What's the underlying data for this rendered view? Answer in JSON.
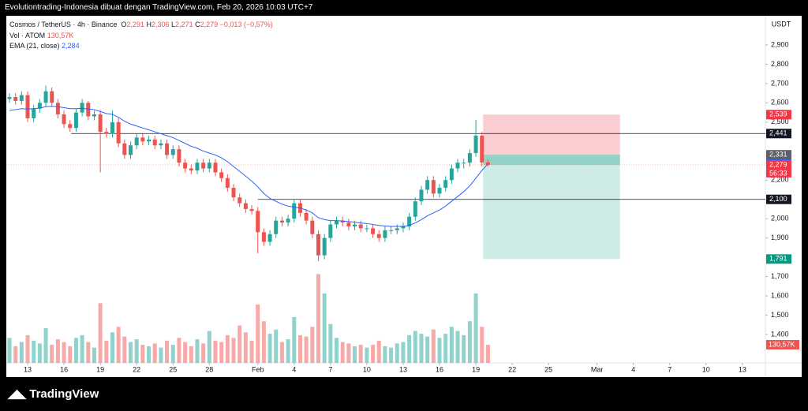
{
  "chart_data": {
    "type": "candlestick",
    "header": "Evolutiontrading-Indonesia dibuat dengan TradingView.com, Feb 20, 2026 10:03 UTC+7",
    "symbol": "Cosmos / TetherUS · 4h · Binance",
    "ohlc": [
      {
        "label": "O",
        "value": "2,291"
      },
      {
        "label": "H",
        "value": "2,306"
      },
      {
        "label": "L",
        "value": "2,271"
      },
      {
        "label": "C",
        "value": "2,279"
      }
    ],
    "change": "−0,013 (−0,57%)",
    "volume_legend": {
      "label": "Vol · ATOM",
      "value": "130,57K"
    },
    "ema_legend": {
      "label": "EMA (21, close)",
      "value": "2,284"
    },
    "currency": "USDT",
    "brand": "TradingView",
    "up_color": "#26a69a",
    "down_color": "#ef5350",
    "ema_color": "#2962ff",
    "x": [
      -1.5,
      -1,
      -0.5,
      0,
      0.5,
      1,
      1.5,
      2,
      2.5,
      3,
      3.5,
      4,
      4.5,
      5,
      5.5,
      6,
      6.5,
      7,
      7.5,
      8,
      8.5,
      9,
      9.5,
      10,
      10.5,
      11,
      11.5,
      12,
      12.5,
      13,
      13.5,
      14,
      14.5,
      15,
      15.5,
      16,
      16.5,
      17,
      17.5,
      18,
      18.5,
      19,
      19.5,
      20,
      20.5,
      21,
      21.5,
      22,
      22.5,
      23,
      23.5,
      24,
      24.5,
      25,
      25.5,
      26,
      26.5,
      27,
      27.5,
      28,
      28.5,
      29,
      29.5,
      30,
      30.5,
      31,
      31.5,
      32,
      32.5,
      33,
      33.5,
      34,
      34.5,
      35,
      35.5,
      36,
      36.5,
      37,
      37.5,
      38
    ],
    "candles": [
      [
        2.62,
        2.65,
        2.6,
        2.63
      ],
      [
        2.63,
        2.65,
        2.59,
        2.61
      ],
      [
        2.61,
        2.66,
        2.59,
        2.64
      ],
      [
        2.64,
        2.66,
        2.5,
        2.52
      ],
      [
        2.52,
        2.59,
        2.5,
        2.57
      ],
      [
        2.57,
        2.62,
        2.55,
        2.6
      ],
      [
        2.6,
        2.69,
        2.58,
        2.66
      ],
      [
        2.66,
        2.68,
        2.58,
        2.6
      ],
      [
        2.6,
        2.62,
        2.52,
        2.54
      ],
      [
        2.54,
        2.56,
        2.47,
        2.49
      ],
      [
        2.49,
        2.51,
        2.45,
        2.47
      ],
      [
        2.47,
        2.57,
        2.45,
        2.55
      ],
      [
        2.55,
        2.62,
        2.53,
        2.6
      ],
      [
        2.6,
        2.61,
        2.51,
        2.53
      ],
      [
        2.53,
        2.56,
        2.51,
        2.54
      ],
      [
        2.54,
        2.56,
        2.24,
        2.45
      ],
      [
        2.45,
        2.47,
        2.42,
        2.44
      ],
      [
        2.44,
        2.56,
        2.42,
        2.5
      ],
      [
        2.5,
        2.52,
        2.37,
        2.39
      ],
      [
        2.39,
        2.41,
        2.31,
        2.33
      ],
      [
        2.33,
        2.4,
        2.31,
        2.38
      ],
      [
        2.38,
        2.44,
        2.36,
        2.42
      ],
      [
        2.42,
        2.44,
        2.38,
        2.4
      ],
      [
        2.4,
        2.43,
        2.38,
        2.41
      ],
      [
        2.41,
        2.43,
        2.36,
        2.38
      ],
      [
        2.38,
        2.41,
        2.36,
        2.39
      ],
      [
        2.39,
        2.41,
        2.31,
        2.33
      ],
      [
        2.33,
        2.38,
        2.31,
        2.36
      ],
      [
        2.36,
        2.38,
        2.27,
        2.29
      ],
      [
        2.29,
        2.31,
        2.24,
        2.26
      ],
      [
        2.26,
        2.28,
        2.23,
        2.25
      ],
      [
        2.25,
        2.31,
        2.23,
        2.29
      ],
      [
        2.29,
        2.31,
        2.24,
        2.26
      ],
      [
        2.26,
        2.31,
        2.24,
        2.29
      ],
      [
        2.29,
        2.31,
        2.22,
        2.24
      ],
      [
        2.24,
        2.26,
        2.19,
        2.21
      ],
      [
        2.21,
        2.23,
        2.14,
        2.16
      ],
      [
        2.16,
        2.18,
        2.09,
        2.11
      ],
      [
        2.11,
        2.13,
        2.06,
        2.08
      ],
      [
        2.08,
        2.1,
        2.03,
        2.05
      ],
      [
        2.05,
        2.07,
        2.02,
        2.04
      ],
      [
        2.04,
        2.06,
        1.82,
        1.93
      ],
      [
        1.93,
        1.95,
        1.86,
        1.88
      ],
      [
        1.88,
        1.94,
        1.86,
        1.92
      ],
      [
        1.92,
        2.01,
        1.9,
        1.99
      ],
      [
        1.99,
        2.01,
        1.96,
        1.98
      ],
      [
        1.98,
        2.02,
        1.96,
        2.0
      ],
      [
        2.0,
        2.1,
        1.98,
        2.08
      ],
      [
        2.08,
        2.1,
        2.01,
        2.03
      ],
      [
        2.03,
        2.05,
        1.97,
        1.99
      ],
      [
        1.99,
        2.01,
        1.9,
        1.92
      ],
      [
        1.92,
        1.94,
        1.78,
        1.81
      ],
      [
        1.81,
        1.92,
        1.79,
        1.9
      ],
      [
        1.9,
        1.99,
        1.88,
        1.97
      ],
      [
        1.97,
        2.01,
        1.95,
        1.99
      ],
      [
        1.99,
        2.01,
        1.96,
        1.98
      ],
      [
        1.98,
        2.0,
        1.94,
        1.96
      ],
      [
        1.96,
        1.99,
        1.94,
        1.97
      ],
      [
        1.97,
        1.99,
        1.93,
        1.95
      ],
      [
        1.95,
        1.97,
        1.93,
        1.95
      ],
      [
        1.95,
        1.97,
        1.9,
        1.92
      ],
      [
        1.92,
        1.94,
        1.88,
        1.9
      ],
      [
        1.9,
        1.96,
        1.88,
        1.94
      ],
      [
        1.94,
        1.96,
        1.92,
        1.94
      ],
      [
        1.94,
        1.97,
        1.92,
        1.95
      ],
      [
        1.95,
        1.98,
        1.93,
        1.96
      ],
      [
        1.96,
        2.03,
        1.94,
        2.01
      ],
      [
        2.01,
        2.11,
        1.99,
        2.09
      ],
      [
        2.09,
        2.17,
        2.07,
        2.15
      ],
      [
        2.15,
        2.22,
        2.13,
        2.2
      ],
      [
        2.2,
        2.22,
        2.11,
        2.13
      ],
      [
        2.13,
        2.18,
        2.11,
        2.16
      ],
      [
        2.16,
        2.22,
        2.14,
        2.2
      ],
      [
        2.2,
        2.28,
        2.18,
        2.26
      ],
      [
        2.26,
        2.31,
        2.24,
        2.29
      ],
      [
        2.29,
        2.31,
        2.26,
        2.29
      ],
      [
        2.29,
        2.36,
        2.27,
        2.34
      ],
      [
        2.34,
        2.512,
        2.32,
        2.43
      ],
      [
        2.43,
        2.45,
        2.27,
        2.291
      ],
      [
        2.291,
        2.306,
        2.271,
        2.279
      ]
    ],
    "volumes": [
      180,
      120,
      150,
      200,
      160,
      140,
      250,
      130,
      170,
      150,
      120,
      180,
      200,
      150,
      110,
      430,
      160,
      220,
      260,
      190,
      150,
      170,
      130,
      120,
      140,
      110,
      160,
      130,
      180,
      150,
      120,
      170,
      140,
      230,
      160,
      150,
      200,
      180,
      270,
      220,
      160,
      420,
      300,
      210,
      240,
      150,
      170,
      330,
      200,
      190,
      260,
      640,
      500,
      280,
      180,
      150,
      140,
      120,
      130,
      110,
      130,
      160,
      120,
      110,
      140,
      150,
      200,
      230,
      210,
      190,
      240,
      180,
      210,
      260,
      230,
      200,
      300,
      500,
      260,
      130.57
    ],
    "volume_lim": [
      0,
      2500
    ],
    "ema": [
      2.56,
      2.565,
      2.57,
      2.568,
      2.57,
      2.573,
      2.58,
      2.582,
      2.58,
      2.575,
      2.57,
      2.57,
      2.572,
      2.568,
      2.565,
      2.555,
      2.545,
      2.54,
      2.525,
      2.505,
      2.49,
      2.48,
      2.47,
      2.46,
      2.45,
      2.44,
      2.43,
      2.42,
      2.405,
      2.39,
      2.375,
      2.365,
      2.35,
      2.34,
      2.33,
      2.315,
      2.295,
      2.27,
      2.245,
      2.22,
      2.195,
      2.165,
      2.13,
      2.105,
      2.09,
      2.075,
      2.065,
      2.06,
      2.055,
      2.045,
      2.03,
      2.005,
      1.995,
      1.99,
      1.99,
      1.988,
      1.985,
      1.982,
      1.978,
      1.975,
      1.97,
      1.965,
      1.962,
      1.96,
      1.96,
      1.96,
      1.965,
      1.978,
      1.995,
      2.015,
      2.03,
      2.045,
      2.065,
      2.09,
      2.115,
      2.14,
      2.17,
      2.21,
      2.25,
      2.284
    ],
    "xlim": [
      -1.76,
      60.9
    ],
    "ylim": [
      1.253,
      3.051
    ],
    "xticks": [
      {
        "value": 0,
        "label": "13"
      },
      {
        "value": 3,
        "label": "16"
      },
      {
        "value": 6,
        "label": "19"
      },
      {
        "value": 9,
        "label": "22"
      },
      {
        "value": 12,
        "label": "25"
      },
      {
        "value": 15,
        "label": "28"
      },
      {
        "value": 19,
        "label": "Feb"
      },
      {
        "value": 22,
        "label": "4"
      },
      {
        "value": 25,
        "label": "7"
      },
      {
        "value": 28,
        "label": "10"
      },
      {
        "value": 31,
        "label": "13"
      },
      {
        "value": 34,
        "label": "16"
      },
      {
        "value": 37,
        "label": "19"
      },
      {
        "value": 40,
        "label": "22"
      },
      {
        "value": 43,
        "label": "25"
      },
      {
        "value": 47,
        "label": "Mar"
      },
      {
        "value": 50,
        "label": "4"
      },
      {
        "value": 53,
        "label": "7"
      },
      {
        "value": 56,
        "label": "10"
      },
      {
        "value": 59,
        "label": "13"
      }
    ],
    "yticks": [
      {
        "value": 2.9,
        "label": "2,900"
      },
      {
        "value": 2.8,
        "label": "2,800"
      },
      {
        "value": 2.7,
        "label": "2,700"
      },
      {
        "value": 2.6,
        "label": "2,600"
      },
      {
        "value": 2.5,
        "label": "2,500"
      },
      {
        "value": 2.2,
        "label": "2,200"
      },
      {
        "value": 2.0,
        "label": "2,000"
      },
      {
        "value": 1.9,
        "label": "1,900"
      },
      {
        "value": 1.7,
        "label": "1,700"
      },
      {
        "value": 1.6,
        "label": "1,600"
      },
      {
        "value": 1.5,
        "label": "1,500"
      },
      {
        "value": 1.4,
        "label": "1,400"
      }
    ],
    "grid": false,
    "levels": [
      {
        "value": 2.441,
        "from": 3.6
      },
      {
        "value": 2.1,
        "from": 19
      }
    ],
    "position": {
      "from": 37.6,
      "to": 48.9,
      "stop": 2.539,
      "entry": 2.331,
      "target": 1.791,
      "current": 2.279
    },
    "price_labels": [
      {
        "value": 2.539,
        "label": "2,539",
        "color": "#f23645"
      },
      {
        "value": 2.441,
        "label": "2,441",
        "color": "#131722"
      },
      {
        "value": 2.331,
        "label": "2,331",
        "color": "#5d606b"
      },
      {
        "value": 2.284,
        "label": "2,284",
        "color": "#2962ff"
      },
      {
        "value": 2.279,
        "label": "2,279",
        "color": "#f23645"
      },
      {
        "value": 2.1,
        "label": "2,100",
        "color": "#131722"
      },
      {
        "value": 1.791,
        "label": "1,791",
        "color": "#089981"
      }
    ],
    "countdown": "56:33",
    "volume_label": {
      "value": 130.57,
      "label": "130,57K",
      "color": "#ef5350"
    }
  }
}
